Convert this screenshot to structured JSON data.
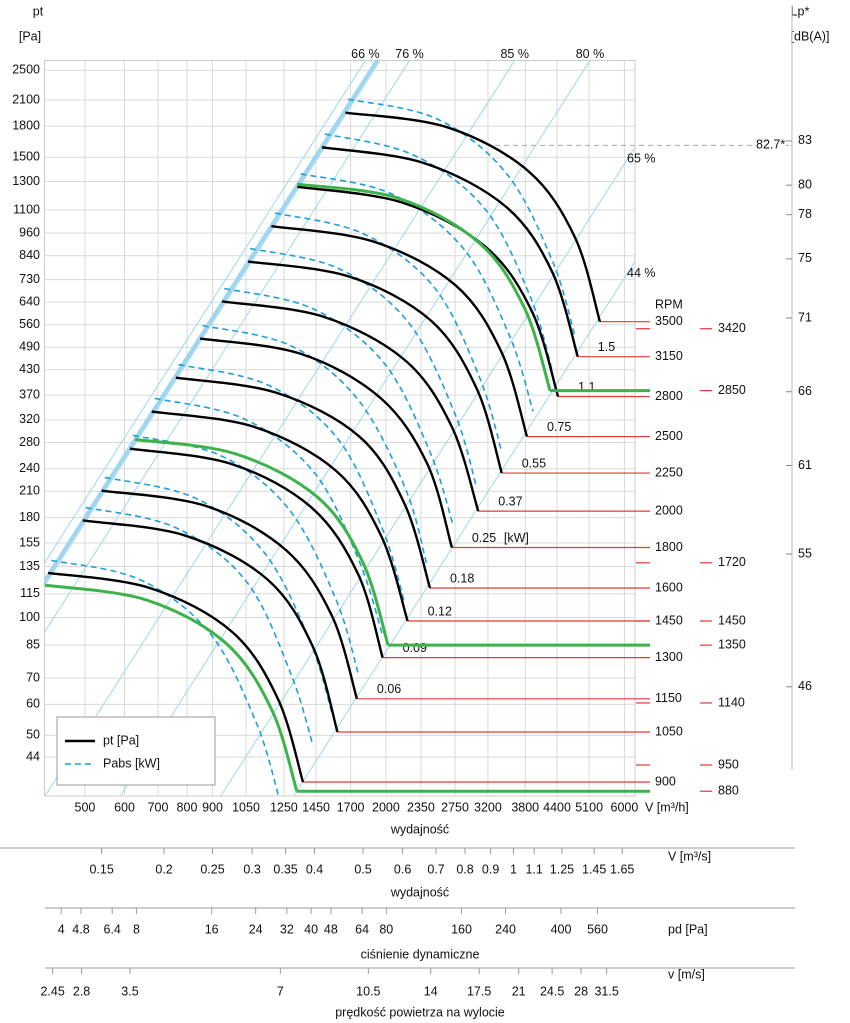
{
  "chart_data": {
    "type": "line",
    "log_x": true,
    "log_y": true,
    "grid": true,
    "y_label": "pt",
    "y_unit": "[Pa]",
    "x_label": "V [m³/h]",
    "x_title": "wydajność",
    "xlim": [
      415,
      6300
    ],
    "xticks": [
      500,
      600,
      700,
      800,
      900,
      1050,
      1250,
      1450,
      1700,
      2000,
      2350,
      2750,
      3200,
      3800,
      4400,
      5100,
      6000
    ],
    "ylim": [
      35,
      2650
    ],
    "yticks": [
      2500,
      2100,
      1800,
      1500,
      1300,
      1100,
      960,
      840,
      730,
      640,
      560,
      490,
      430,
      370,
      320,
      280,
      240,
      210,
      180,
      155,
      135,
      115,
      100,
      85,
      70,
      60,
      50,
      44
    ],
    "y2_label": "Lp*",
    "y2_unit": "[dB(A)]",
    "y2lim": [
      38.6,
      88.45
    ],
    "y2ticks": [
      83,
      80,
      78,
      75,
      71,
      66,
      61,
      55,
      46
    ],
    "y2_annotation": {
      "value": 82.7,
      "label": "82.7*"
    },
    "legend": {
      "position": "lower left",
      "entries": [
        {
          "name": "pt [Pa]",
          "color": "#000000",
          "dash": false
        },
        {
          "name": "Pabs [kW]",
          "color": "#1e9fd8",
          "dash": true
        }
      ]
    },
    "rpm_title": "RPM",
    "step_color": "#e53935",
    "highlight_color": "#3bb34a",
    "efficiency_color": "#9fd6ef",
    "efficiency": [
      {
        "label": "66 %",
        "V": 1820,
        "pt": 2650
      },
      {
        "label": "76 %",
        "V": 2230,
        "pt": 2650
      },
      {
        "label": "85 %",
        "V": 3620,
        "pt": 2650
      },
      {
        "label": "80 %",
        "V": 5120,
        "pt": 2650
      },
      {
        "label": "65 %",
        "V": 6300,
        "pt": 1590
      },
      {
        "label": "44 %",
        "V": 6300,
        "pt": 812
      }
    ],
    "curves": [
      {
        "rpm": 3500,
        "x": [
          1660,
          2650,
          3860,
          4780,
          5360
        ],
        "y": [
          1950,
          1790,
          1380,
          935,
          570
        ],
        "pabs_x": [
          1680,
          2530,
          3490,
          4320,
          4780
        ],
        "pabs_y": [
          2110,
          1880,
          1360,
          807,
          522
        ]
      },
      {
        "rpm": 3150,
        "kw": 1.5,
        "x": [
          1490,
          2380,
          3480,
          4300,
          4840
        ],
        "y": [
          1590,
          1450,
          1120,
          765,
          464
        ],
        "pabs_x": [
          1510,
          2270,
          3150,
          3890,
          4310
        ],
        "pabs_y": [
          1720,
          1520,
          1110,
          660,
          425
        ]
      },
      {
        "rpm": 2800,
        "kw": 1.1,
        "x": [
          1330,
          2150,
          3160,
          3920,
          4420
        ],
        "y": [
          1260,
          1150,
          887,
          605,
          367
        ],
        "pabs_x": [
          1350,
          2050,
          2860,
          3540,
          3940
        ],
        "pabs_y": [
          1360,
          1210,
          876,
          522,
          336
        ]
      },
      {
        "rpm": 2500,
        "kw": 0.75,
        "x": [
          1180,
          1890,
          2760,
          3410,
          3830
        ],
        "y": [
          1000,
          913,
          705,
          475,
          290
        ],
        "pabs_x": [
          1200,
          1800,
          2500,
          3080,
          3410
        ],
        "pabs_y": [
          1080,
          957,
          697,
          410,
          265
        ]
      },
      {
        "rpm": 2250,
        "kw": 0.55,
        "x": [
          1060,
          1690,
          2460,
          3040,
          3410
        ],
        "y": [
          812,
          743,
          574,
          384,
          234
        ],
        "pabs_x": [
          1070,
          1610,
          2220,
          2750,
          3040
        ],
        "pabs_y": [
          877,
          779,
          567,
          331,
          214
        ]
      },
      {
        "rpm": 2000,
        "kw": 0.37,
        "x": [
          940,
          1500,
          2190,
          2710,
          3060
        ],
        "y": [
          642,
          587,
          453,
          307,
          187
        ],
        "pabs_x": [
          950,
          1430,
          1980,
          2450,
          2730
        ],
        "pabs_y": [
          693,
          615,
          448,
          265,
          171
        ]
      },
      {
        "rpm": 1800,
        "kw": 0.25,
        "kw_unit": "[kW]",
        "x": [
          850,
          1350,
          1950,
          2420,
          2710
        ],
        "y": [
          516,
          472,
          364,
          247,
          151
        ],
        "pabs_x": [
          860,
          1290,
          1760,
          2190,
          2410
        ],
        "pabs_y": [
          557,
          495,
          360,
          213,
          138
        ]
      },
      {
        "rpm": 1600,
        "kw": 0.18,
        "x": [
          760,
          1210,
          1770,
          2180,
          2450
        ],
        "y": [
          410,
          375,
          290,
          195,
          119
        ],
        "pabs_x": [
          770,
          1160,
          1600,
          1970,
          2180
        ],
        "pabs_y": [
          443,
          393,
          287,
          168,
          109
        ]
      },
      {
        "rpm": 1450,
        "kw": 0.12,
        "x": [
          680,
          1090,
          1590,
          1960,
          2210
        ],
        "y": [
          336,
          307,
          237,
          161,
          98
        ],
        "pabs_x": [
          690,
          1040,
          1440,
          1770,
          1970
        ],
        "pabs_y": [
          363,
          322,
          234,
          139,
          90
        ]
      },
      {
        "rpm": 1300,
        "kw": 0.09,
        "x": [
          615,
          980,
          1420,
          1760,
          1970
        ],
        "y": [
          270,
          247,
          191,
          129,
          79
        ],
        "pabs_x": [
          624,
          936,
          1280,
          1590,
          1760
        ],
        "pabs_y": [
          292,
          259,
          189,
          111,
          72
        ]
      },
      {
        "rpm": 1150,
        "kw": 0.06,
        "x": [
          540,
          870,
          1260,
          1560,
          1750
        ],
        "y": [
          211,
          193,
          149,
          101,
          62
        ],
        "pabs_x": [
          548,
          831,
          1140,
          1410,
          1560
        ],
        "pabs_y": [
          228,
          202,
          147,
          87,
          57
        ]
      },
      {
        "rpm": 1050,
        "x": [
          495,
          793,
          1160,
          1430,
          1600
        ],
        "y": [
          177,
          162,
          125,
          84,
          51
        ],
        "pabs_x": [
          502,
          757,
          1050,
          1290,
          1430
        ],
        "pabs_y": [
          191,
          170,
          124,
          72,
          47
        ]
      },
      {
        "rpm": 900,
        "x": [
          422,
          674,
          984,
          1216,
          1365
        ],
        "y": [
          130,
          119,
          92,
          62,
          38
        ],
        "pabs_x": [
          428,
          644,
          890,
          1100,
          1220
        ],
        "pabs_y": [
          140,
          125,
          91,
          54,
          35
        ]
      }
    ],
    "motors": [
      {
        "rpm": 3420,
        "pt": 547
      },
      {
        "rpm": 2850,
        "x": [
          1330,
          2110,
          3070,
          3790,
          4260
        ],
        "y": [
          1280,
          1180,
          908,
          616,
          380
        ]
      },
      {
        "rpm": 1720,
        "pt": 138
      },
      {
        "rpm": 1450,
        "pt": 98
      },
      {
        "rpm": 1350,
        "x": [
          630,
          1000,
          1460,
          1800,
          2020
        ],
        "y": [
          285,
          262,
          203,
          138,
          85
        ]
      },
      {
        "rpm": 1140,
        "pt": 60.5
      },
      {
        "rpm": 950,
        "pt": 42
      },
      {
        "rpm": 880,
        "x": [
          416,
          662,
          957,
          1183,
          1327
        ],
        "y": [
          121,
          111,
          86,
          58,
          36
        ]
      }
    ],
    "secondary_axes": [
      {
        "label": "V  [m³/s]",
        "title": "wydajność",
        "xlim": [
          0.1153,
          1.75
        ],
        "xticks": [
          0.15,
          0.2,
          0.25,
          0.3,
          0.35,
          0.4,
          0.5,
          0.6,
          0.7,
          0.8,
          0.9,
          1,
          1.1,
          1.25,
          1.45,
          1.65
        ]
      },
      {
        "label": "pd  [Pa]",
        "title": "ciśnienie dynamiczne",
        "xlim": [
          3.43,
          791
        ],
        "xticks": [
          4,
          4.8,
          6.4,
          8,
          16,
          24,
          32,
          40,
          48,
          64,
          80,
          160,
          240,
          400,
          560
        ]
      },
      {
        "label": "v  [m/s]",
        "title": "prędkość powietrza na wylocie",
        "xlim": [
          2.36,
          35.9
        ],
        "xticks": [
          2.45,
          2.8,
          3.5,
          7,
          10.5,
          14,
          17.5,
          21,
          24.5,
          28,
          31.5
        ]
      }
    ]
  }
}
